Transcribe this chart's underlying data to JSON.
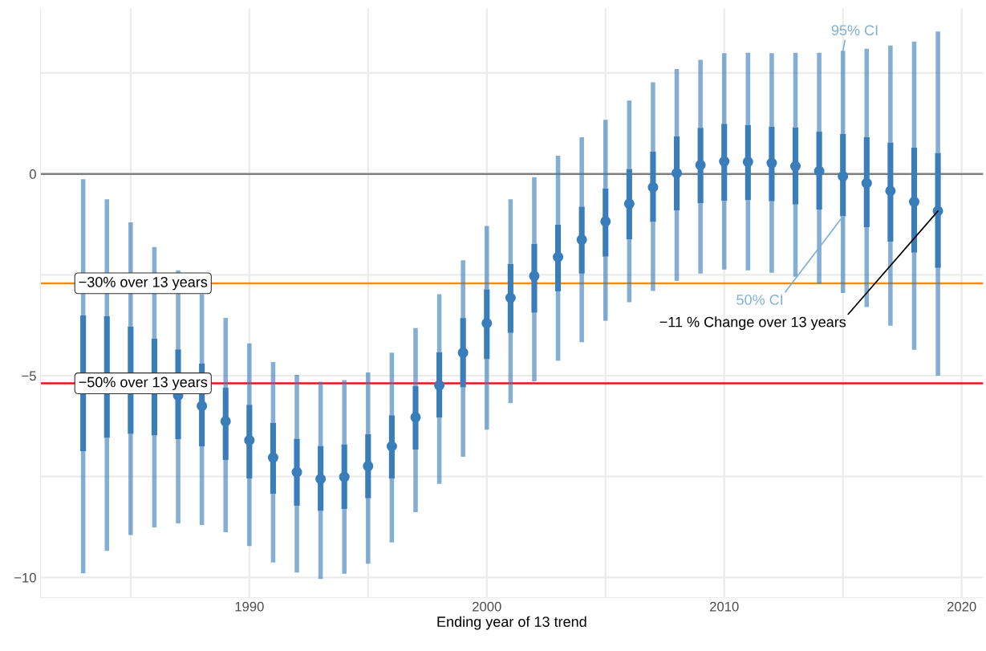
{
  "chart_data": {
    "type": "box",
    "xlabel": "Ending year of 13 trend",
    "x": [
      1983,
      1984,
      1985,
      1986,
      1987,
      1988,
      1989,
      1990,
      1991,
      1992,
      1993,
      1994,
      1995,
      1996,
      1997,
      1998,
      1999,
      2000,
      2001,
      2002,
      2003,
      2004,
      2005,
      2006,
      2007,
      2008,
      2009,
      2010,
      2011,
      2012,
      2013,
      2014,
      2015,
      2016,
      2017,
      2018,
      2019
    ],
    "series": [
      {
        "color": "#3a7dbb",
        "marker": "circle",
        "boxes": [
          {
            "low": -9.9,
            "q1": -6.87,
            "median": -5.21,
            "q3": -3.51,
            "high": -0.13
          },
          {
            "low": -9.34,
            "q1": -6.54,
            "median": -5.05,
            "q3": -3.53,
            "high": -0.63
          },
          {
            "low": -8.95,
            "q1": -6.44,
            "median": -5.13,
            "q3": -3.78,
            "high": -1.2
          },
          {
            "low": -8.76,
            "q1": -6.48,
            "median": -5.27,
            "q3": -4.08,
            "high": -1.81
          },
          {
            "low": -8.66,
            "q1": -6.57,
            "median": -5.49,
            "q3": -4.35,
            "high": -2.39
          },
          {
            "low": -8.7,
            "q1": -6.75,
            "median": -5.75,
            "q3": -4.7,
            "high": -2.98
          },
          {
            "low": -8.88,
            "q1": -7.09,
            "median": -6.13,
            "q3": -5.3,
            "high": -3.57
          },
          {
            "low": -9.22,
            "q1": -7.55,
            "median": -6.6,
            "q3": -5.72,
            "high": -4.2
          },
          {
            "low": -9.63,
            "q1": -7.93,
            "median": -7.03,
            "q3": -6.17,
            "high": -4.66
          },
          {
            "low": -9.88,
            "q1": -8.22,
            "median": -7.39,
            "q3": -6.56,
            "high": -4.98
          },
          {
            "low": -10.04,
            "q1": -8.35,
            "median": -7.56,
            "q3": -6.74,
            "high": -5.15
          },
          {
            "low": -9.91,
            "q1": -8.3,
            "median": -7.51,
            "q3": -6.7,
            "high": -5.11
          },
          {
            "low": -9.66,
            "q1": -8.04,
            "median": -7.24,
            "q3": -6.45,
            "high": -4.92
          },
          {
            "low": -9.13,
            "q1": -7.55,
            "median": -6.75,
            "q3": -5.98,
            "high": -4.43
          },
          {
            "low": -8.38,
            "q1": -6.83,
            "median": -6.03,
            "q3": -5.26,
            "high": -3.82
          },
          {
            "low": -7.68,
            "q1": -6.04,
            "median": -5.24,
            "q3": -4.42,
            "high": -2.98
          },
          {
            "low": -7.01,
            "q1": -5.29,
            "median": -4.43,
            "q3": -3.57,
            "high": -2.14
          },
          {
            "low": -6.34,
            "q1": -4.59,
            "median": -3.7,
            "q3": -2.86,
            "high": -1.29
          },
          {
            "low": -5.68,
            "q1": -3.94,
            "median": -3.07,
            "q3": -2.23,
            "high": -0.63
          },
          {
            "low": -5.14,
            "q1": -3.44,
            "median": -2.53,
            "q3": -1.73,
            "high": -0.08
          },
          {
            "low": -4.63,
            "q1": -2.91,
            "median": -2.06,
            "q3": -1.26,
            "high": 0.45
          },
          {
            "low": -4.17,
            "q1": -2.47,
            "median": -1.63,
            "q3": -0.81,
            "high": 0.91
          },
          {
            "low": -3.64,
            "q1": -2.05,
            "median": -1.18,
            "q3": -0.36,
            "high": 1.34
          },
          {
            "low": -3.18,
            "q1": -1.62,
            "median": -0.74,
            "q3": 0.12,
            "high": 1.82
          },
          {
            "low": -2.9,
            "q1": -1.19,
            "median": -0.33,
            "q3": 0.55,
            "high": 2.27
          },
          {
            "low": -2.65,
            "q1": -0.9,
            "median": 0.02,
            "q3": 0.93,
            "high": 2.6
          },
          {
            "low": -2.47,
            "q1": -0.73,
            "median": 0.22,
            "q3": 1.14,
            "high": 2.83
          },
          {
            "low": -2.37,
            "q1": -0.67,
            "median": 0.31,
            "q3": 1.24,
            "high": 2.99
          },
          {
            "low": -2.39,
            "q1": -0.65,
            "median": 0.3,
            "q3": 1.21,
            "high": 3.0
          },
          {
            "low": -2.45,
            "q1": -0.68,
            "median": 0.27,
            "q3": 1.17,
            "high": 2.99
          },
          {
            "low": -2.55,
            "q1": -0.76,
            "median": 0.19,
            "q3": 1.15,
            "high": 3.0
          },
          {
            "low": -2.72,
            "q1": -0.88,
            "median": 0.07,
            "q3": 1.05,
            "high": 3.0
          },
          {
            "low": -2.95,
            "q1": -1.05,
            "median": -0.06,
            "q3": 0.99,
            "high": 3.05
          },
          {
            "low": -3.3,
            "q1": -1.32,
            "median": -0.23,
            "q3": 0.91,
            "high": 3.1
          },
          {
            "low": -3.76,
            "q1": -1.68,
            "median": -0.42,
            "q3": 0.78,
            "high": 3.18
          },
          {
            "low": -4.36,
            "q1": -1.95,
            "median": -0.69,
            "q3": 0.65,
            "high": 3.28
          },
          {
            "low": -5.0,
            "q1": -2.33,
            "median": -0.92,
            "q3": 0.52,
            "high": 3.53
          }
        ]
      }
    ],
    "xlim": [
      1981.2,
      2020.9
    ],
    "ylim": [
      -10.5,
      4.1
    ],
    "xticks": [
      {
        "value": 1985,
        "label": null
      },
      1990,
      {
        "value": 1995,
        "label": null
      },
      2000,
      {
        "value": 2005,
        "label": null
      },
      2010,
      {
        "value": 2015,
        "label": null
      },
      2020
    ],
    "yticks": [
      -10,
      {
        "value": -7.5,
        "label": null
      },
      -5,
      {
        "value": -2.5,
        "label": null
      },
      0,
      {
        "value": 2.5,
        "label": null
      }
    ],
    "grid": true,
    "ref_lines": [
      {
        "axis": "y",
        "value": 0,
        "color": "#808080"
      },
      {
        "axis": "y",
        "value": -2.71,
        "color": "#ff8c00",
        "label": "−30% over 13 years"
      },
      {
        "axis": "y",
        "value": -5.19,
        "color": "#e8141c",
        "label": "−50% over 13 years"
      }
    ],
    "annotations": [
      "95% CI",
      {
        "text": "50% CI",
        "x": 2015,
        "y": -1.05
      },
      {
        "text": "−11 % Change over 13 years",
        "x": 2019,
        "y": -0.92
      }
    ]
  }
}
